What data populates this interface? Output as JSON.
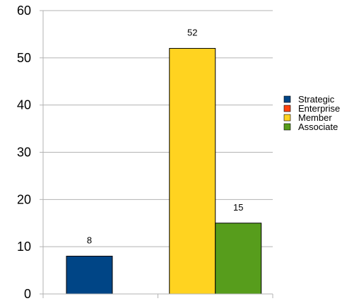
{
  "chart_data": {
    "type": "bar",
    "categories": [
      "",
      ""
    ],
    "series": [
      {
        "name": "Strategic",
        "color": "#004586",
        "values": [
          8,
          null
        ]
      },
      {
        "name": "Enterprise",
        "color": "#ff420e",
        "values": [
          0,
          null
        ]
      },
      {
        "name": "Member",
        "color": "#ffd320",
        "values": [
          null,
          52
        ]
      },
      {
        "name": "Associate",
        "color": "#579d1c",
        "values": [
          null,
          15
        ]
      }
    ],
    "data_labels": [
      {
        "series": "Strategic",
        "category": 0,
        "text": "8"
      },
      {
        "series": "Member",
        "category": 1,
        "text": "52"
      },
      {
        "series": "Associate",
        "category": 1,
        "text": "15"
      }
    ],
    "title": "",
    "xlabel": "",
    "ylabel": "",
    "ylim": [
      0,
      60
    ],
    "yticks": [
      0,
      10,
      20,
      30,
      40,
      50,
      60
    ],
    "grid": true,
    "legend_position": "right"
  }
}
